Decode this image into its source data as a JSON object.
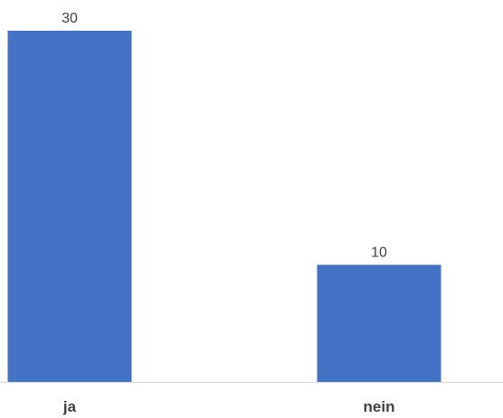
{
  "chart_data": {
    "type": "bar",
    "categories": [
      "ja",
      "nein"
    ],
    "values": [
      30,
      10
    ],
    "title": "",
    "xlabel": "",
    "ylabel": "",
    "ylim": [
      0,
      30
    ],
    "grid": false,
    "legend": "none",
    "bar_color": "#4472C4",
    "axis_color": "#D9D9D9"
  }
}
